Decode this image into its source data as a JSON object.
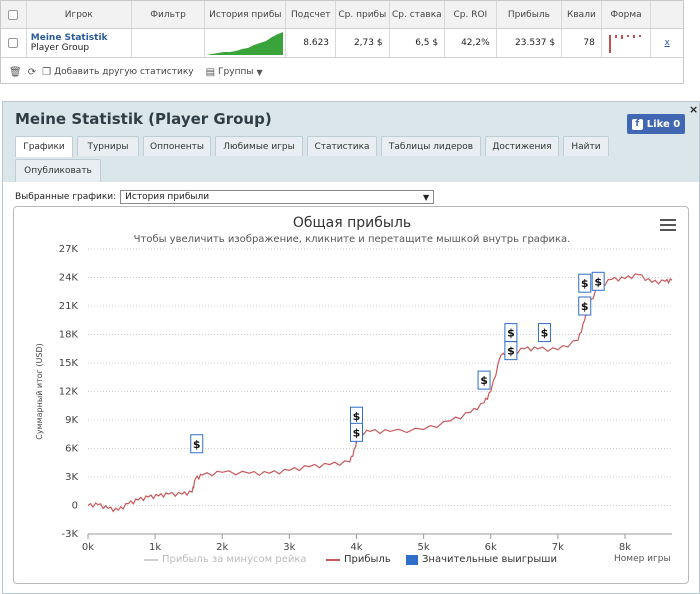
{
  "table": {
    "columns": [
      "Игрок",
      "Фильтр",
      "История прибы",
      "Подсчет",
      "Ср. прибы",
      "Ср. ставка",
      "Ср. ROI",
      "Прибыль",
      "Квали",
      "Форма"
    ],
    "row": {
      "name": "Meine Statistik",
      "group": "Player Group",
      "count": "8.623",
      "avg_profit": "2,73 $",
      "avg_stake": "6,5 $",
      "roi": "42,2%",
      "profit": "23.537 $",
      "quali": "78",
      "remove": "x"
    }
  },
  "toolbar": {
    "add_label": "Добавить другую статистику",
    "groups_label": "Группы"
  },
  "widget": {
    "title": "Meine Statistik (Player Group)",
    "like_label": "Like 0",
    "close": "×",
    "tabs": [
      "Графики",
      "Турниры",
      "Оппоненты",
      "Любимые игры",
      "Статистика",
      "Таблицы лидеров",
      "Достижения",
      "Найти",
      "Опубликовать"
    ],
    "selected_charts_label": "Выбранные графики:",
    "selected_chart_value": "История прибыли"
  },
  "chart_data": {
    "type": "line",
    "title": "Общая прибыль",
    "subtitle": "Чтобы увеличить изображение, кликните и перетащите мышкой внутрь графика.",
    "ylabel": "Суммарный итог (USD)",
    "xlabel": "Номер игры",
    "x_ticks": [
      "0k",
      "1k",
      "2k",
      "3k",
      "4k",
      "5k",
      "6k",
      "7k",
      "8k"
    ],
    "y_ticks": [
      "-3K",
      "0",
      "3K",
      "6K",
      "9K",
      "12K",
      "15K",
      "18K",
      "21K",
      "24K",
      "27K"
    ],
    "xlim": [
      0,
      8700
    ],
    "ylim": [
      -3000,
      27000
    ],
    "grid": true,
    "series": [
      {
        "name": "Прибыль",
        "color": "#c8595b",
        "points": [
          [
            0,
            0
          ],
          [
            150,
            100
          ],
          [
            300,
            -300
          ],
          [
            450,
            -500
          ],
          [
            600,
            200
          ],
          [
            750,
            600
          ],
          [
            900,
            900
          ],
          [
            1050,
            1000
          ],
          [
            1200,
            1200
          ],
          [
            1400,
            1200
          ],
          [
            1550,
            1400
          ],
          [
            1600,
            2800
          ],
          [
            1700,
            3200
          ],
          [
            2000,
            3500
          ],
          [
            2400,
            3400
          ],
          [
            2700,
            3400
          ],
          [
            3000,
            3700
          ],
          [
            3300,
            4100
          ],
          [
            3600,
            4300
          ],
          [
            3900,
            4600
          ],
          [
            3990,
            6200
          ],
          [
            4010,
            7600
          ],
          [
            4200,
            7800
          ],
          [
            4500,
            7800
          ],
          [
            5000,
            8000
          ],
          [
            5400,
            8900
          ],
          [
            5700,
            9800
          ],
          [
            5900,
            10800
          ],
          [
            6000,
            12000
          ],
          [
            6150,
            15800
          ],
          [
            6300,
            16000
          ],
          [
            6500,
            16500
          ],
          [
            6700,
            16500
          ],
          [
            7000,
            16400
          ],
          [
            7300,
            17400
          ],
          [
            7400,
            19500
          ],
          [
            7450,
            21000
          ],
          [
            7600,
            23000
          ],
          [
            7800,
            23800
          ],
          [
            8000,
            23900
          ],
          [
            8200,
            24300
          ],
          [
            8400,
            23500
          ],
          [
            8600,
            23600
          ],
          [
            8700,
            23700
          ]
        ]
      }
    ],
    "legend": [
      {
        "label": "Прибыль за минусом рейка",
        "color": "#cfcfcf"
      },
      {
        "label": "Прибыль",
        "color": "#c8595b"
      },
      {
        "label": "Значительные выигрыши",
        "color": "#2f6ec8"
      }
    ],
    "markers": [
      [
        1620,
        6500
      ],
      [
        4000,
        9400
      ],
      [
        4000,
        7700
      ],
      [
        5900,
        13200
      ],
      [
        6300,
        18200
      ],
      [
        6300,
        16300
      ],
      [
        6800,
        18200
      ],
      [
        7400,
        23400
      ],
      [
        7400,
        21000
      ],
      [
        7600,
        23600
      ]
    ]
  }
}
